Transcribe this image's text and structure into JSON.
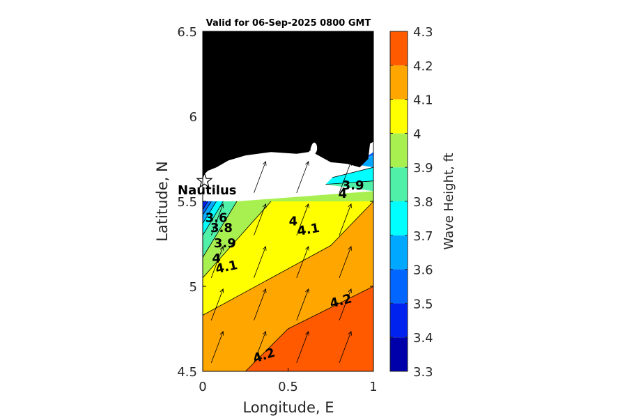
{
  "chart_data": {
    "type": "contour",
    "title": "Valid for 06-Sep-2025 0800 GMT",
    "xlabel": "Longitude, E",
    "ylabel": "Latitude, N",
    "xlim": [
      0,
      1
    ],
    "ylim": [
      4.5,
      6.5
    ],
    "xticks": [
      "0",
      "0.5",
      "1"
    ],
    "yticks": [
      "4.5",
      "5",
      "5.5",
      "6",
      "6.5"
    ],
    "colorbar": {
      "label": "Wave Height, ft",
      "ticks": [
        "3.3",
        "3.4",
        "3.5",
        "3.6",
        "3.7",
        "3.8",
        "3.9",
        "4",
        "4.1",
        "4.2",
        "4.3"
      ],
      "levels": [
        3.3,
        3.4,
        3.5,
        3.6,
        3.7,
        3.8,
        3.9,
        4.0,
        4.1,
        4.2,
        4.3
      ],
      "colors": [
        "#0000aa",
        "#0022ee",
        "#0066ff",
        "#00a8ff",
        "#00ffff",
        "#50f0a8",
        "#a8f050",
        "#ffff00",
        "#ffa600",
        "#ff5a00"
      ]
    },
    "bands": [
      {
        "min": 4.2,
        "max": 4.3,
        "polygon": [
          [
            0.25,
            4.5
          ],
          [
            0.5,
            4.75
          ],
          [
            1.0,
            5.0
          ],
          [
            1.0,
            4.5
          ]
        ]
      },
      {
        "min": 4.1,
        "max": 4.2,
        "polygon": [
          [
            0,
            4.5
          ],
          [
            0.25,
            4.5
          ],
          [
            0.5,
            4.75
          ],
          [
            1.0,
            5.0
          ],
          [
            1.0,
            5.5
          ],
          [
            0.75,
            5.24
          ],
          [
            0,
            4.83
          ]
        ]
      },
      {
        "min": 4.0,
        "max": 4.1,
        "polygon": [
          [
            0,
            4.83
          ],
          [
            0.75,
            5.24
          ],
          [
            1.0,
            5.5
          ],
          [
            0.4,
            5.5
          ],
          [
            0,
            5.05
          ]
        ]
      },
      {
        "min": 3.9,
        "max": 4.0,
        "polygon": [
          [
            0,
            5.05
          ],
          [
            0.4,
            5.5
          ],
          [
            1.0,
            5.5
          ],
          [
            1.0,
            5.56
          ],
          [
            0.2,
            5.5
          ],
          [
            0,
            5.17
          ]
        ]
      },
      {
        "min": 3.8,
        "max": 4.0,
        "polygon": [
          [
            0.72,
            5.6
          ],
          [
            1.0,
            5.62
          ],
          [
            1.0,
            5.56
          ]
        ]
      },
      {
        "min": 3.8,
        "max": 3.9,
        "polygon": [
          [
            0,
            5.17
          ],
          [
            0.2,
            5.5
          ],
          [
            0.12,
            5.5
          ],
          [
            0,
            5.3
          ]
        ]
      },
      {
        "min": 3.7,
        "max": 3.9,
        "polygon": [
          [
            0.76,
            5.64
          ],
          [
            1.0,
            5.7
          ],
          [
            1.0,
            5.62
          ],
          [
            0.72,
            5.6
          ]
        ]
      },
      {
        "min": 3.7,
        "max": 3.8,
        "polygon": [
          [
            0,
            5.3
          ],
          [
            0.12,
            5.5
          ],
          [
            0.08,
            5.5
          ],
          [
            0,
            5.37
          ]
        ]
      },
      {
        "min": 3.6,
        "max": 3.7,
        "polygon": [
          [
            0,
            5.37
          ],
          [
            0.08,
            5.5
          ],
          [
            0.05,
            5.5
          ],
          [
            0,
            5.42
          ]
        ]
      },
      {
        "min": 3.5,
        "max": 3.6,
        "polygon": [
          [
            0,
            5.42
          ],
          [
            0.05,
            5.5
          ],
          [
            0.03,
            5.5
          ],
          [
            0,
            5.45
          ]
        ]
      },
      {
        "min": 3.4,
        "max": 3.5,
        "polygon": [
          [
            0,
            5.45
          ],
          [
            0.03,
            5.5
          ],
          [
            0,
            5.5
          ]
        ]
      },
      {
        "min": 3.6,
        "max": 3.8,
        "polygon": [
          [
            0.88,
            5.72
          ],
          [
            1.0,
            5.77
          ],
          [
            1.0,
            5.7
          ]
        ]
      },
      {
        "min": 3.5,
        "max": 3.6,
        "polygon": [
          [
            0.94,
            5.75
          ],
          [
            1.0,
            5.79
          ],
          [
            1.0,
            5.77
          ]
        ]
      }
    ],
    "contour_lines": [
      {
        "level": 4.2,
        "points": [
          [
            0.25,
            4.5
          ],
          [
            0.5,
            4.75
          ],
          [
            1.0,
            5.0
          ]
        ]
      },
      {
        "level": 4.1,
        "points": [
          [
            0,
            4.83
          ],
          [
            0.75,
            5.24
          ],
          [
            1.0,
            5.5
          ]
        ]
      },
      {
        "level": 4.0,
        "points": [
          [
            0,
            5.05
          ],
          [
            0.4,
            5.5
          ]
        ]
      },
      {
        "level": 3.9,
        "points": [
          [
            0,
            5.17
          ],
          [
            0.2,
            5.5
          ]
        ]
      },
      {
        "level": 3.8,
        "points": [
          [
            0,
            5.3
          ],
          [
            0.12,
            5.5
          ]
        ]
      },
      {
        "level": 3.7,
        "points": [
          [
            0,
            5.37
          ],
          [
            0.08,
            5.5
          ]
        ]
      },
      {
        "level": 3.6,
        "points": [
          [
            0,
            5.42
          ],
          [
            0.05,
            5.5
          ]
        ]
      },
      {
        "level": 3.5,
        "points": [
          [
            0,
            5.45
          ],
          [
            0.03,
            5.5
          ]
        ]
      },
      {
        "level": 4.0,
        "points": [
          [
            0.72,
            5.6
          ],
          [
            1.0,
            5.62
          ]
        ]
      },
      {
        "level": 3.9,
        "points": [
          [
            0.76,
            5.64
          ],
          [
            1.0,
            5.7
          ]
        ]
      }
    ],
    "contour_labels": [
      {
        "text": "4.2",
        "x": 0.36,
        "y": 4.59,
        "angle": -18
      },
      {
        "text": "4.2",
        "x": 0.81,
        "y": 4.91,
        "angle": -15
      },
      {
        "text": "4.1",
        "x": 0.14,
        "y": 5.11,
        "angle": -12
      },
      {
        "text": "4.1",
        "x": 0.62,
        "y": 5.33,
        "angle": -10
      },
      {
        "text": "4",
        "x": 0.08,
        "y": 5.16,
        "angle": 0
      },
      {
        "text": "4",
        "x": 0.53,
        "y": 5.38,
        "angle": 0
      },
      {
        "text": "3.9",
        "x": 0.13,
        "y": 5.25,
        "angle": 0
      },
      {
        "text": "3.8",
        "x": 0.11,
        "y": 5.34,
        "angle": 0
      },
      {
        "text": "3.6",
        "x": 0.08,
        "y": 5.4,
        "angle": 0
      },
      {
        "text": "3.9",
        "x": 0.88,
        "y": 5.59,
        "angle": 0
      },
      {
        "text": "4",
        "x": 0.82,
        "y": 5.54,
        "angle": 0
      }
    ],
    "wave_direction_arrows": [
      {
        "x": 0.05,
        "y": 4.55
      },
      {
        "x": 0.3,
        "y": 4.55
      },
      {
        "x": 0.55,
        "y": 4.55
      },
      {
        "x": 0.8,
        "y": 4.55
      },
      {
        "x": 0.05,
        "y": 4.8
      },
      {
        "x": 0.3,
        "y": 4.8
      },
      {
        "x": 0.55,
        "y": 4.8
      },
      {
        "x": 0.8,
        "y": 4.8
      },
      {
        "x": 0.05,
        "y": 5.05
      },
      {
        "x": 0.3,
        "y": 5.05
      },
      {
        "x": 0.55,
        "y": 5.05
      },
      {
        "x": 0.8,
        "y": 5.05
      },
      {
        "x": 0.05,
        "y": 5.3
      },
      {
        "x": 0.3,
        "y": 5.3
      },
      {
        "x": 0.55,
        "y": 5.3
      },
      {
        "x": 0.8,
        "y": 5.3
      },
      {
        "x": 0.3,
        "y": 5.55
      },
      {
        "x": 0.55,
        "y": 5.55
      },
      {
        "x": 0.8,
        "y": 5.55
      }
    ],
    "land_polygon": [
      [
        0,
        5.5
      ],
      [
        0,
        6.5
      ],
      [
        1.0,
        6.5
      ],
      [
        1.0,
        5.85
      ],
      [
        0.98,
        5.84
      ],
      [
        0.97,
        5.75
      ],
      [
        0.92,
        5.7
      ],
      [
        0.85,
        5.72
      ],
      [
        0.75,
        5.73
      ],
      [
        0.66,
        5.78
      ],
      [
        0.65,
        5.82
      ],
      [
        0.62,
        5.79
      ],
      [
        0.55,
        5.78
      ],
      [
        0.4,
        5.79
      ],
      [
        0.25,
        5.77
      ],
      [
        0.15,
        5.74
      ],
      [
        0.08,
        5.7
      ],
      [
        0.03,
        5.68
      ],
      [
        0.01,
        5.66
      ],
      [
        0,
        5.64
      ]
    ],
    "station": {
      "name": "Nautilus",
      "x": 0.01,
      "y": 5.62
    }
  }
}
